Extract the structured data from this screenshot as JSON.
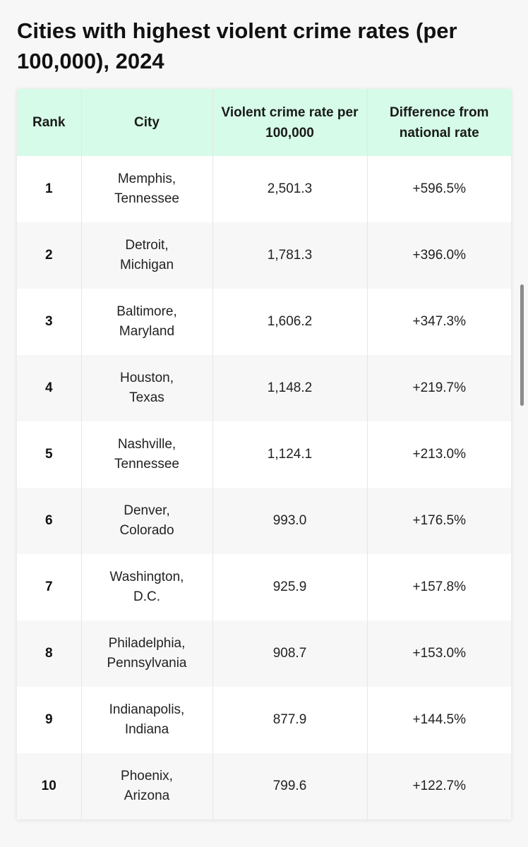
{
  "title": "Cities with highest violent crime rates (per 100,000), 2024",
  "table": {
    "headers": {
      "rank": "Rank",
      "city": "City",
      "rate": "Violent crime rate per 100,000",
      "diff": "Difference from national rate"
    },
    "rows": [
      {
        "rank": "1",
        "city_line1": "Memphis,",
        "city_line2": "Tennessee",
        "rate": "2,501.3",
        "diff": "+596.5%"
      },
      {
        "rank": "2",
        "city_line1": "Detroit,",
        "city_line2": "Michigan",
        "rate": "1,781.3",
        "diff": "+396.0%"
      },
      {
        "rank": "3",
        "city_line1": "Baltimore,",
        "city_line2": "Maryland",
        "rate": "1,606.2",
        "diff": "+347.3%"
      },
      {
        "rank": "4",
        "city_line1": "Houston,",
        "city_line2": "Texas",
        "rate": "1,148.2",
        "diff": "+219.7%"
      },
      {
        "rank": "5",
        "city_line1": "Nashville,",
        "city_line2": "Tennessee",
        "rate": "1,124.1",
        "diff": "+213.0%"
      },
      {
        "rank": "6",
        "city_line1": "Denver,",
        "city_line2": "Colorado",
        "rate": "993.0",
        "diff": "+176.5%"
      },
      {
        "rank": "7",
        "city_line1": "Washington,",
        "city_line2": "D.C.",
        "rate": "925.9",
        "diff": "+157.8%"
      },
      {
        "rank": "8",
        "city_line1": "Philadelphia,",
        "city_line2": "Pennsylvania",
        "rate": "908.7",
        "diff": "+153.0%"
      },
      {
        "rank": "9",
        "city_line1": "Indianapolis,",
        "city_line2": "Indiana",
        "rate": "877.9",
        "diff": "+144.5%"
      },
      {
        "rank": "10",
        "city_line1": "Phoenix,",
        "city_line2": "Arizona",
        "rate": "799.6",
        "diff": "+122.7%"
      }
    ]
  },
  "colors": {
    "header_bg": "#d6fbe8",
    "row_odd": "#ffffff",
    "row_even": "#f7f7f7",
    "page_bg": "#f7f7f7",
    "scrollbar": "#8a8a8a"
  }
}
